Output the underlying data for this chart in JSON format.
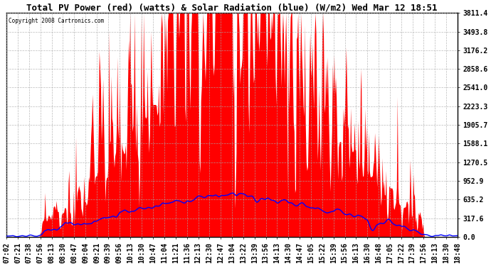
{
  "title": "Total PV Power (red) (watts) & Solar Radiation (blue) (W/m2) Wed Mar 12 18:51",
  "copyright": "Copyright 2008 Cartronics.com",
  "y_max": 3811.4,
  "y_ticks": [
    0.0,
    317.6,
    635.2,
    952.9,
    1270.5,
    1588.1,
    1905.7,
    2223.3,
    2541.0,
    2858.6,
    3176.2,
    3493.8,
    3811.4
  ],
  "y_tick_labels": [
    "0.0",
    "317.6",
    "635.2",
    "952.9",
    "1270.5",
    "1588.1",
    "1905.7",
    "2223.3",
    "2541.0",
    "2858.6",
    "3176.2",
    "3493.8",
    "3811.4"
  ],
  "x_tick_labels": [
    "07:02",
    "07:21",
    "07:38",
    "07:56",
    "08:13",
    "08:30",
    "08:47",
    "09:04",
    "09:21",
    "09:39",
    "09:56",
    "10:13",
    "10:30",
    "10:47",
    "11:04",
    "11:21",
    "11:36",
    "12:13",
    "12:30",
    "12:47",
    "13:04",
    "13:22",
    "13:39",
    "13:56",
    "14:13",
    "14:30",
    "14:47",
    "15:05",
    "15:22",
    "15:39",
    "15:56",
    "16:13",
    "16:30",
    "16:48",
    "17:05",
    "17:22",
    "17:39",
    "17:56",
    "18:13",
    "18:30",
    "18:48"
  ],
  "bg_color": "#ffffff",
  "plot_bg_color": "#ffffff",
  "grid_color": "#aaaaaa",
  "red_color": "#ff0000",
  "blue_color": "#0000ff",
  "title_fontsize": 9,
  "tick_fontsize": 7,
  "solar_rad_max": 700,
  "pv_base_peak": 1400,
  "pv_spike_max": 3811.4
}
